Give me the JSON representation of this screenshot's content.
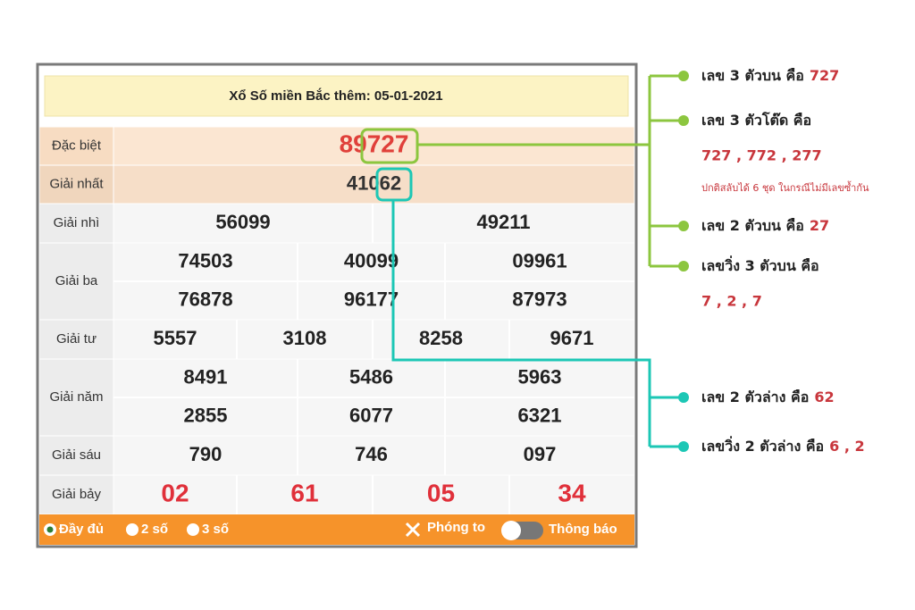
{
  "header": {
    "title": "Xổ Số miền Bắc thêm: 05-01-2021"
  },
  "rows": [
    {
      "label": "Đặc biệt",
      "numbers": [
        {
          "prefix": "89",
          "highlight": "727"
        }
      ]
    },
    {
      "label": "Giải nhất",
      "numbers": [
        {
          "prefix": "410",
          "highlight": "62"
        }
      ]
    },
    {
      "label": "Giải nhì",
      "numbers": [
        "56099",
        "49211"
      ]
    },
    {
      "label": "Giải ba",
      "numbers": [
        "74503",
        "40099",
        "09961",
        "76878",
        "96177",
        "87973"
      ]
    },
    {
      "label": "Giải tư",
      "numbers": [
        "5557",
        "3108",
        "8258",
        "9671"
      ]
    },
    {
      "label": "Giải năm",
      "numbers": [
        "8491",
        "5486",
        "5963",
        "2855",
        "6077",
        "6321"
      ]
    },
    {
      "label": "Giải sáu",
      "numbers": [
        "790",
        "746",
        "097"
      ]
    },
    {
      "label": "Giải bảy",
      "numbers": [
        "02",
        "61",
        "05",
        "34"
      ]
    }
  ],
  "footer": {
    "options": [
      "Đầy đủ",
      "2 số",
      "3 số"
    ],
    "zoom": "Phóng to",
    "notify": "Thông báo"
  },
  "annotations": [
    {
      "text": "เลข 3 ตัวบน คือ",
      "value": "727"
    },
    {
      "text": "เลข 3 ตัวโต๊ด คือ",
      "value": "727 , 772 , 277",
      "note": "ปกติสลับได้ 6 ชุด ในกรณีไม่มีเลขซ้ำกัน"
    },
    {
      "text": "เลข 2 ตัวบน คือ",
      "value": "27"
    },
    {
      "text": "เลขวิ่ง 3 ตัวบน คือ",
      "value": "7 , 2 , 7"
    },
    {
      "text": "เลข 2 ตัวล่าง คือ",
      "value": "62"
    },
    {
      "text": "เลขวิ่ง 2 ตัวล่าง คือ",
      "value": "6 , 2"
    }
  ]
}
